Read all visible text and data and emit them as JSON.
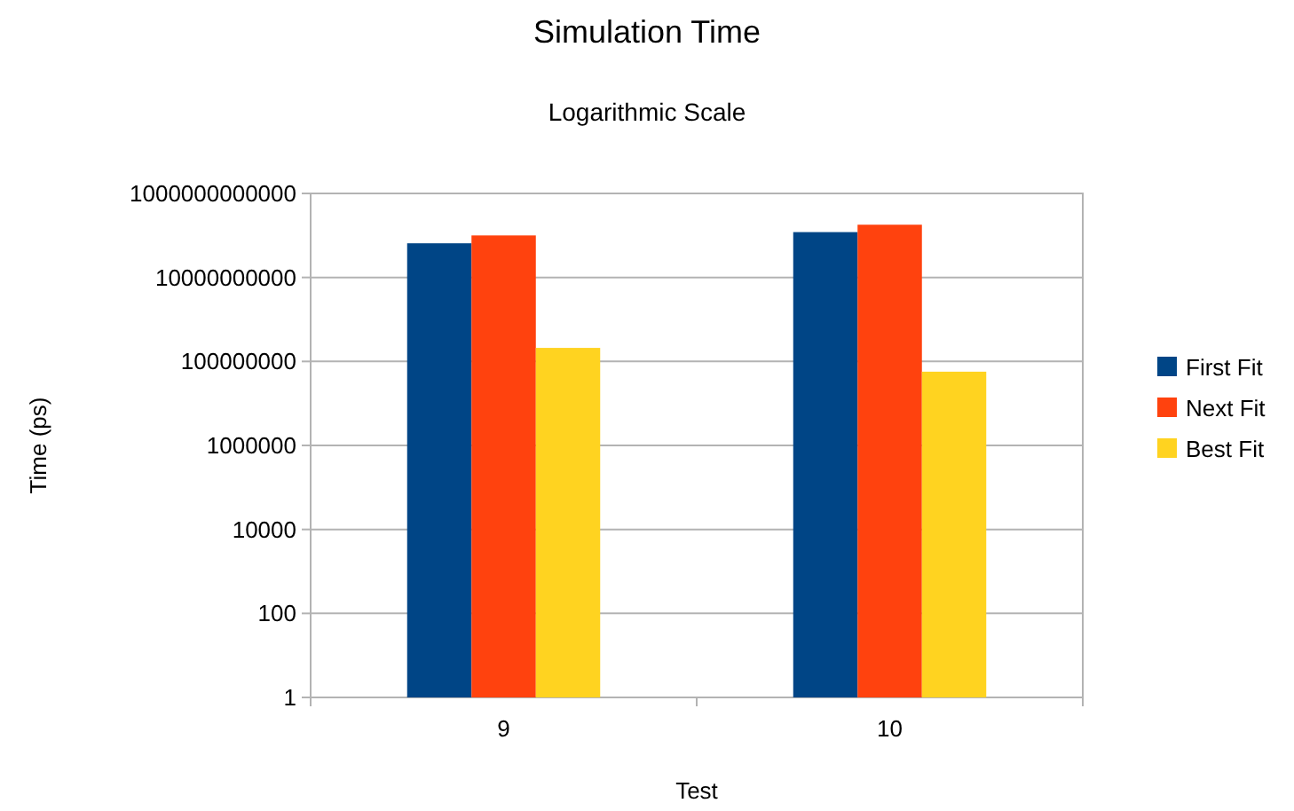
{
  "chart_data": {
    "type": "bar",
    "title": "Simulation Time",
    "subtitle": "Logarithmic Scale",
    "xlabel": "Test",
    "ylabel": "Time (ps)",
    "categories": [
      "9",
      "10"
    ],
    "series": [
      {
        "name": "First Fit",
        "color": "#004586",
        "values": [
          65000000000,
          120000000000
        ]
      },
      {
        "name": "Next Fit",
        "color": "#ff420e",
        "values": [
          100000000000,
          180000000000
        ]
      },
      {
        "name": "Best Fit",
        "color": "#ffd320",
        "values": [
          210000000,
          57000000
        ]
      }
    ],
    "log": true,
    "ylim": [
      1,
      1000000000000
    ],
    "yticks": [
      {
        "value": 1,
        "label": "1"
      },
      {
        "value": 100,
        "label": "100"
      },
      {
        "value": 10000,
        "label": "10000"
      },
      {
        "value": 1000000,
        "label": "1000000"
      },
      {
        "value": 100000000,
        "label": "100000000"
      },
      {
        "value": 10000000000,
        "label": "10000000000"
      },
      {
        "value": 1000000000000,
        "label": "1000000000000"
      }
    ],
    "grid": "y",
    "legend": "right"
  }
}
